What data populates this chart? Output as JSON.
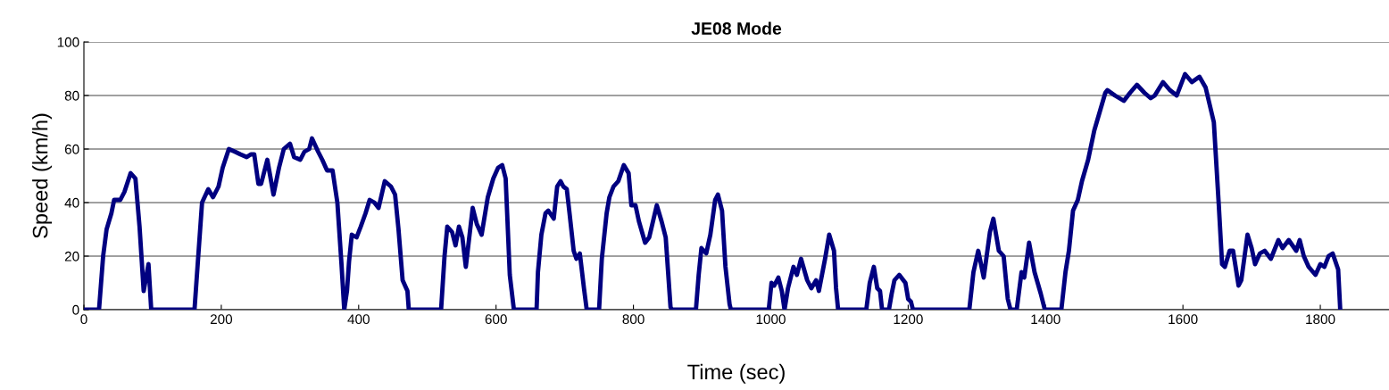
{
  "chart_data": {
    "type": "line",
    "title": "JE08 Mode",
    "xlabel": "Time (sec)",
    "ylabel": "Speed (km/h)",
    "xlim": [
      0,
      1900
    ],
    "xticks": [
      0,
      200,
      400,
      600,
      800,
      1000,
      1200,
      1400,
      1600,
      1800
    ],
    "ylim": [
      0,
      100
    ],
    "yticks": [
      0,
      20,
      40,
      60,
      80,
      100
    ],
    "grid": "y",
    "legend": false,
    "marker": "none",
    "line_style": "solid",
    "series": [
      {
        "color": "#000080",
        "x": [
          0,
          22,
          28,
          33,
          40,
          44,
          53,
          59,
          68,
          75,
          81,
          87,
          94,
          98,
          161,
          164,
          172,
          181,
          188,
          196,
          202,
          211,
          220,
          228,
          237,
          243,
          248,
          254,
          258,
          267,
          276,
          284,
          291,
          300,
          306,
          315,
          321,
          328,
          332,
          341,
          347,
          354,
          362,
          369,
          375,
          379,
          383,
          386,
          390,
          397,
          403,
          410,
          416,
          423,
          429,
          438,
          447,
          453,
          458,
          464,
          471,
          473,
          520,
          525,
          529,
          536,
          541,
          546,
          551,
          556,
          566,
          572,
          579,
          588,
          596,
          603,
          609,
          614,
          620,
          626,
          659,
          661,
          666,
          672,
          676,
          684,
          689,
          694,
          698,
          703,
          707,
          713,
          717,
          722,
          728,
          732,
          750,
          754,
          761,
          765,
          771,
          778,
          786,
          793,
          797,
          803,
          808,
          817,
          823,
          834,
          841,
          847,
          854,
          856,
          891,
          895,
          899,
          906,
          912,
          919,
          923,
          929,
          934,
          940,
          942,
          997,
          1001,
          1005,
          1011,
          1016,
          1020,
          1025,
          1033,
          1038,
          1044,
          1053,
          1059,
          1066,
          1070,
          1079,
          1085,
          1092,
          1095,
          1098,
          1139,
          1144,
          1150,
          1155,
          1159,
          1162,
          1172,
          1176,
          1180,
          1187,
          1196,
          1200,
          1204,
          1207,
          1289,
          1295,
          1302,
          1310,
          1319,
          1324,
          1332,
          1339,
          1345,
          1349,
          1358,
          1365,
          1369,
          1376,
          1384,
          1393,
          1399,
          1423,
          1429,
          1434,
          1440,
          1447,
          1453,
          1462,
          1471,
          1479,
          1487,
          1490,
          1501,
          1514,
          1523,
          1533,
          1544,
          1553,
          1559,
          1571,
          1581,
          1591,
          1603,
          1613,
          1624,
          1633,
          1645,
          1652,
          1657,
          1661,
          1668,
          1673,
          1681,
          1685,
          1694,
          1700,
          1705,
          1712,
          1719,
          1728,
          1739,
          1745,
          1754,
          1765,
          1770,
          1776,
          1783,
          1793,
          1800,
          1806,
          1812,
          1818,
          1826,
          1829
        ],
        "values": [
          0,
          0,
          20,
          30,
          36,
          41,
          41,
          44,
          51,
          49,
          31,
          7,
          17,
          0,
          0,
          11,
          40,
          45,
          42,
          46,
          53,
          60,
          59,
          58,
          57,
          58,
          58,
          47,
          47,
          56,
          43,
          53,
          60,
          62,
          57,
          56,
          59,
          60,
          64,
          59,
          56,
          52,
          52,
          40,
          17,
          0,
          7,
          18,
          28,
          27,
          31,
          36,
          41,
          40,
          38,
          48,
          46,
          43,
          30,
          11,
          7,
          0,
          0,
          20,
          31,
          29,
          24,
          31,
          27,
          16,
          38,
          32,
          28,
          42,
          49,
          53,
          54,
          49,
          13,
          0,
          0,
          14,
          28,
          36,
          37,
          34,
          46,
          48,
          46,
          45,
          36,
          22,
          19,
          21,
          8,
          0,
          0,
          19,
          36,
          42,
          46,
          48,
          54,
          51,
          39,
          39,
          33,
          25,
          27,
          39,
          33,
          27,
          1,
          0,
          0,
          13,
          23,
          21,
          28,
          41,
          43,
          37,
          16,
          2,
          0,
          0,
          10,
          9,
          12,
          7,
          0,
          8,
          16,
          13,
          19,
          11,
          8,
          11,
          7,
          19,
          28,
          22,
          8,
          0,
          0,
          10,
          16,
          8,
          7,
          0,
          0,
          6,
          11,
          13,
          10,
          4,
          3,
          0,
          0,
          14,
          22,
          12,
          29,
          34,
          22,
          20,
          4,
          0,
          0,
          14,
          12,
          25,
          14,
          6,
          0,
          0,
          14,
          22,
          37,
          41,
          48,
          56,
          67,
          74,
          81,
          82,
          80,
          78,
          81,
          84,
          81,
          79,
          80,
          85,
          82,
          80,
          88,
          85,
          87,
          83,
          70,
          40,
          17,
          16,
          22,
          22,
          9,
          11,
          28,
          23,
          17,
          21,
          22,
          19,
          26,
          23,
          26,
          22,
          26,
          20,
          16,
          13,
          17,
          16,
          20,
          21,
          15,
          0
        ]
      }
    ]
  }
}
